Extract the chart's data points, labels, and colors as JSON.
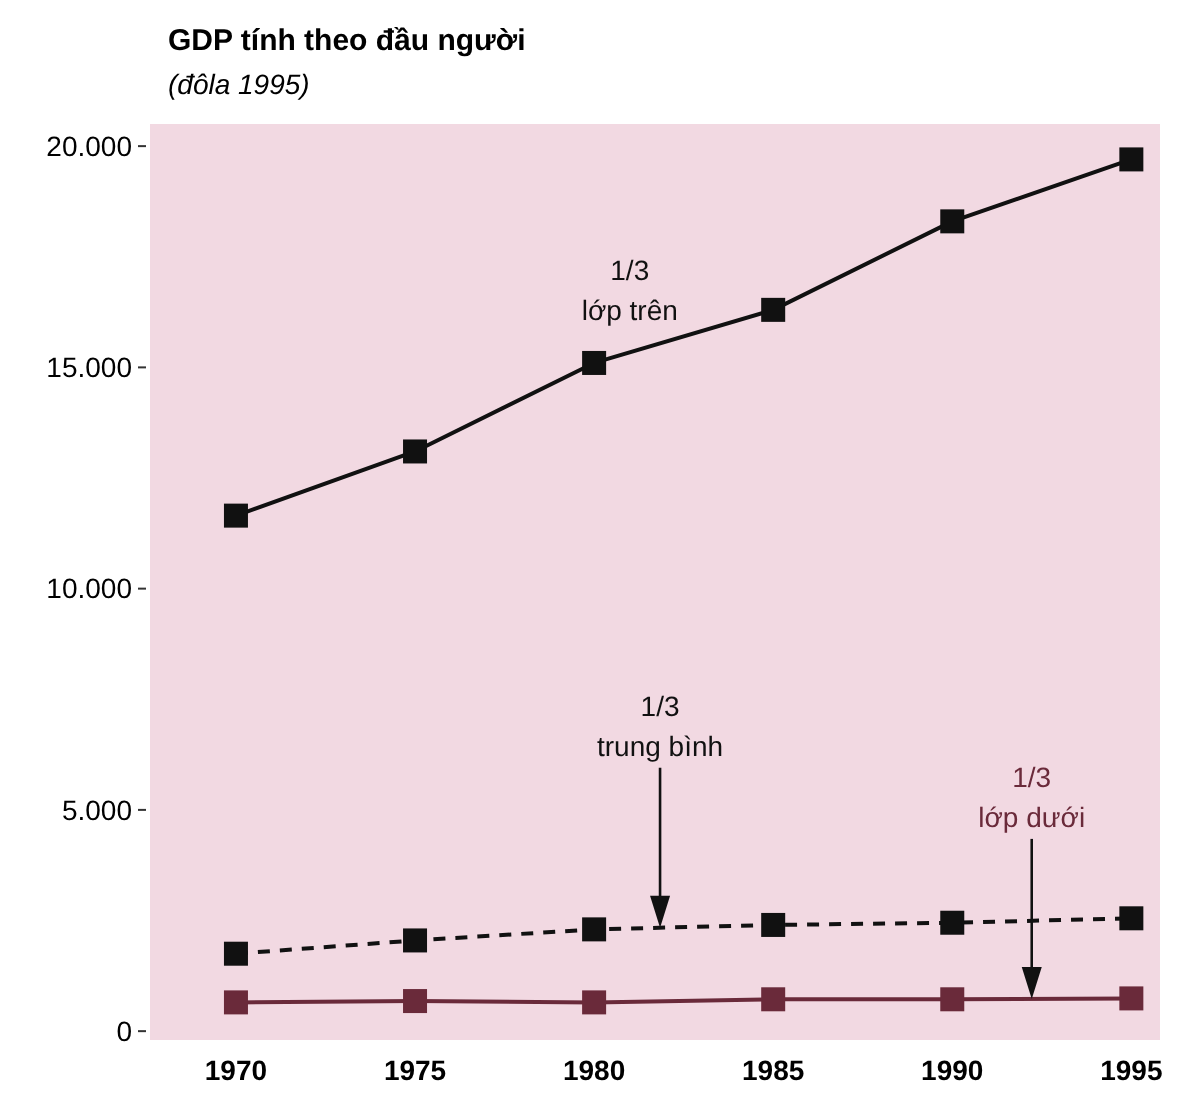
{
  "chart_data": {
    "type": "line",
    "title": "GDP tính theo đầu người",
    "subtitle": "(đôla 1995)",
    "x": [
      1970,
      1975,
      1980,
      1985,
      1990,
      1995
    ],
    "series": [
      {
        "name": "1/3\nlớp trên",
        "color": "#111111",
        "values": [
          11650,
          13100,
          15100,
          16300,
          18300,
          19700
        ]
      },
      {
        "name": "1/3\ntrung bình",
        "color": "#111111",
        "line_style": "dashed",
        "values": [
          1750,
          2050,
          2300,
          2400,
          2450,
          2550
        ]
      },
      {
        "name": "1/3\nlớp dưới",
        "color": "#6a2a3a",
        "values": [
          650,
          680,
          650,
          720,
          720,
          740
        ]
      }
    ],
    "xlim": [
      1967.6,
      1995.8
    ],
    "xticks": [
      1970,
      1975,
      1980,
      1985,
      1990,
      1995
    ],
    "ylim": [
      -200,
      20500
    ],
    "yticks": [
      {
        "value": 0,
        "label": "0"
      },
      {
        "value": 5000,
        "label": "5.000"
      },
      {
        "value": 10000,
        "label": "10.000"
      },
      {
        "value": 15000,
        "label": "15.000"
      },
      {
        "value": 20000,
        "label": "20.000"
      }
    ],
    "grid": false,
    "marker": "square",
    "line_style": "solid"
  }
}
